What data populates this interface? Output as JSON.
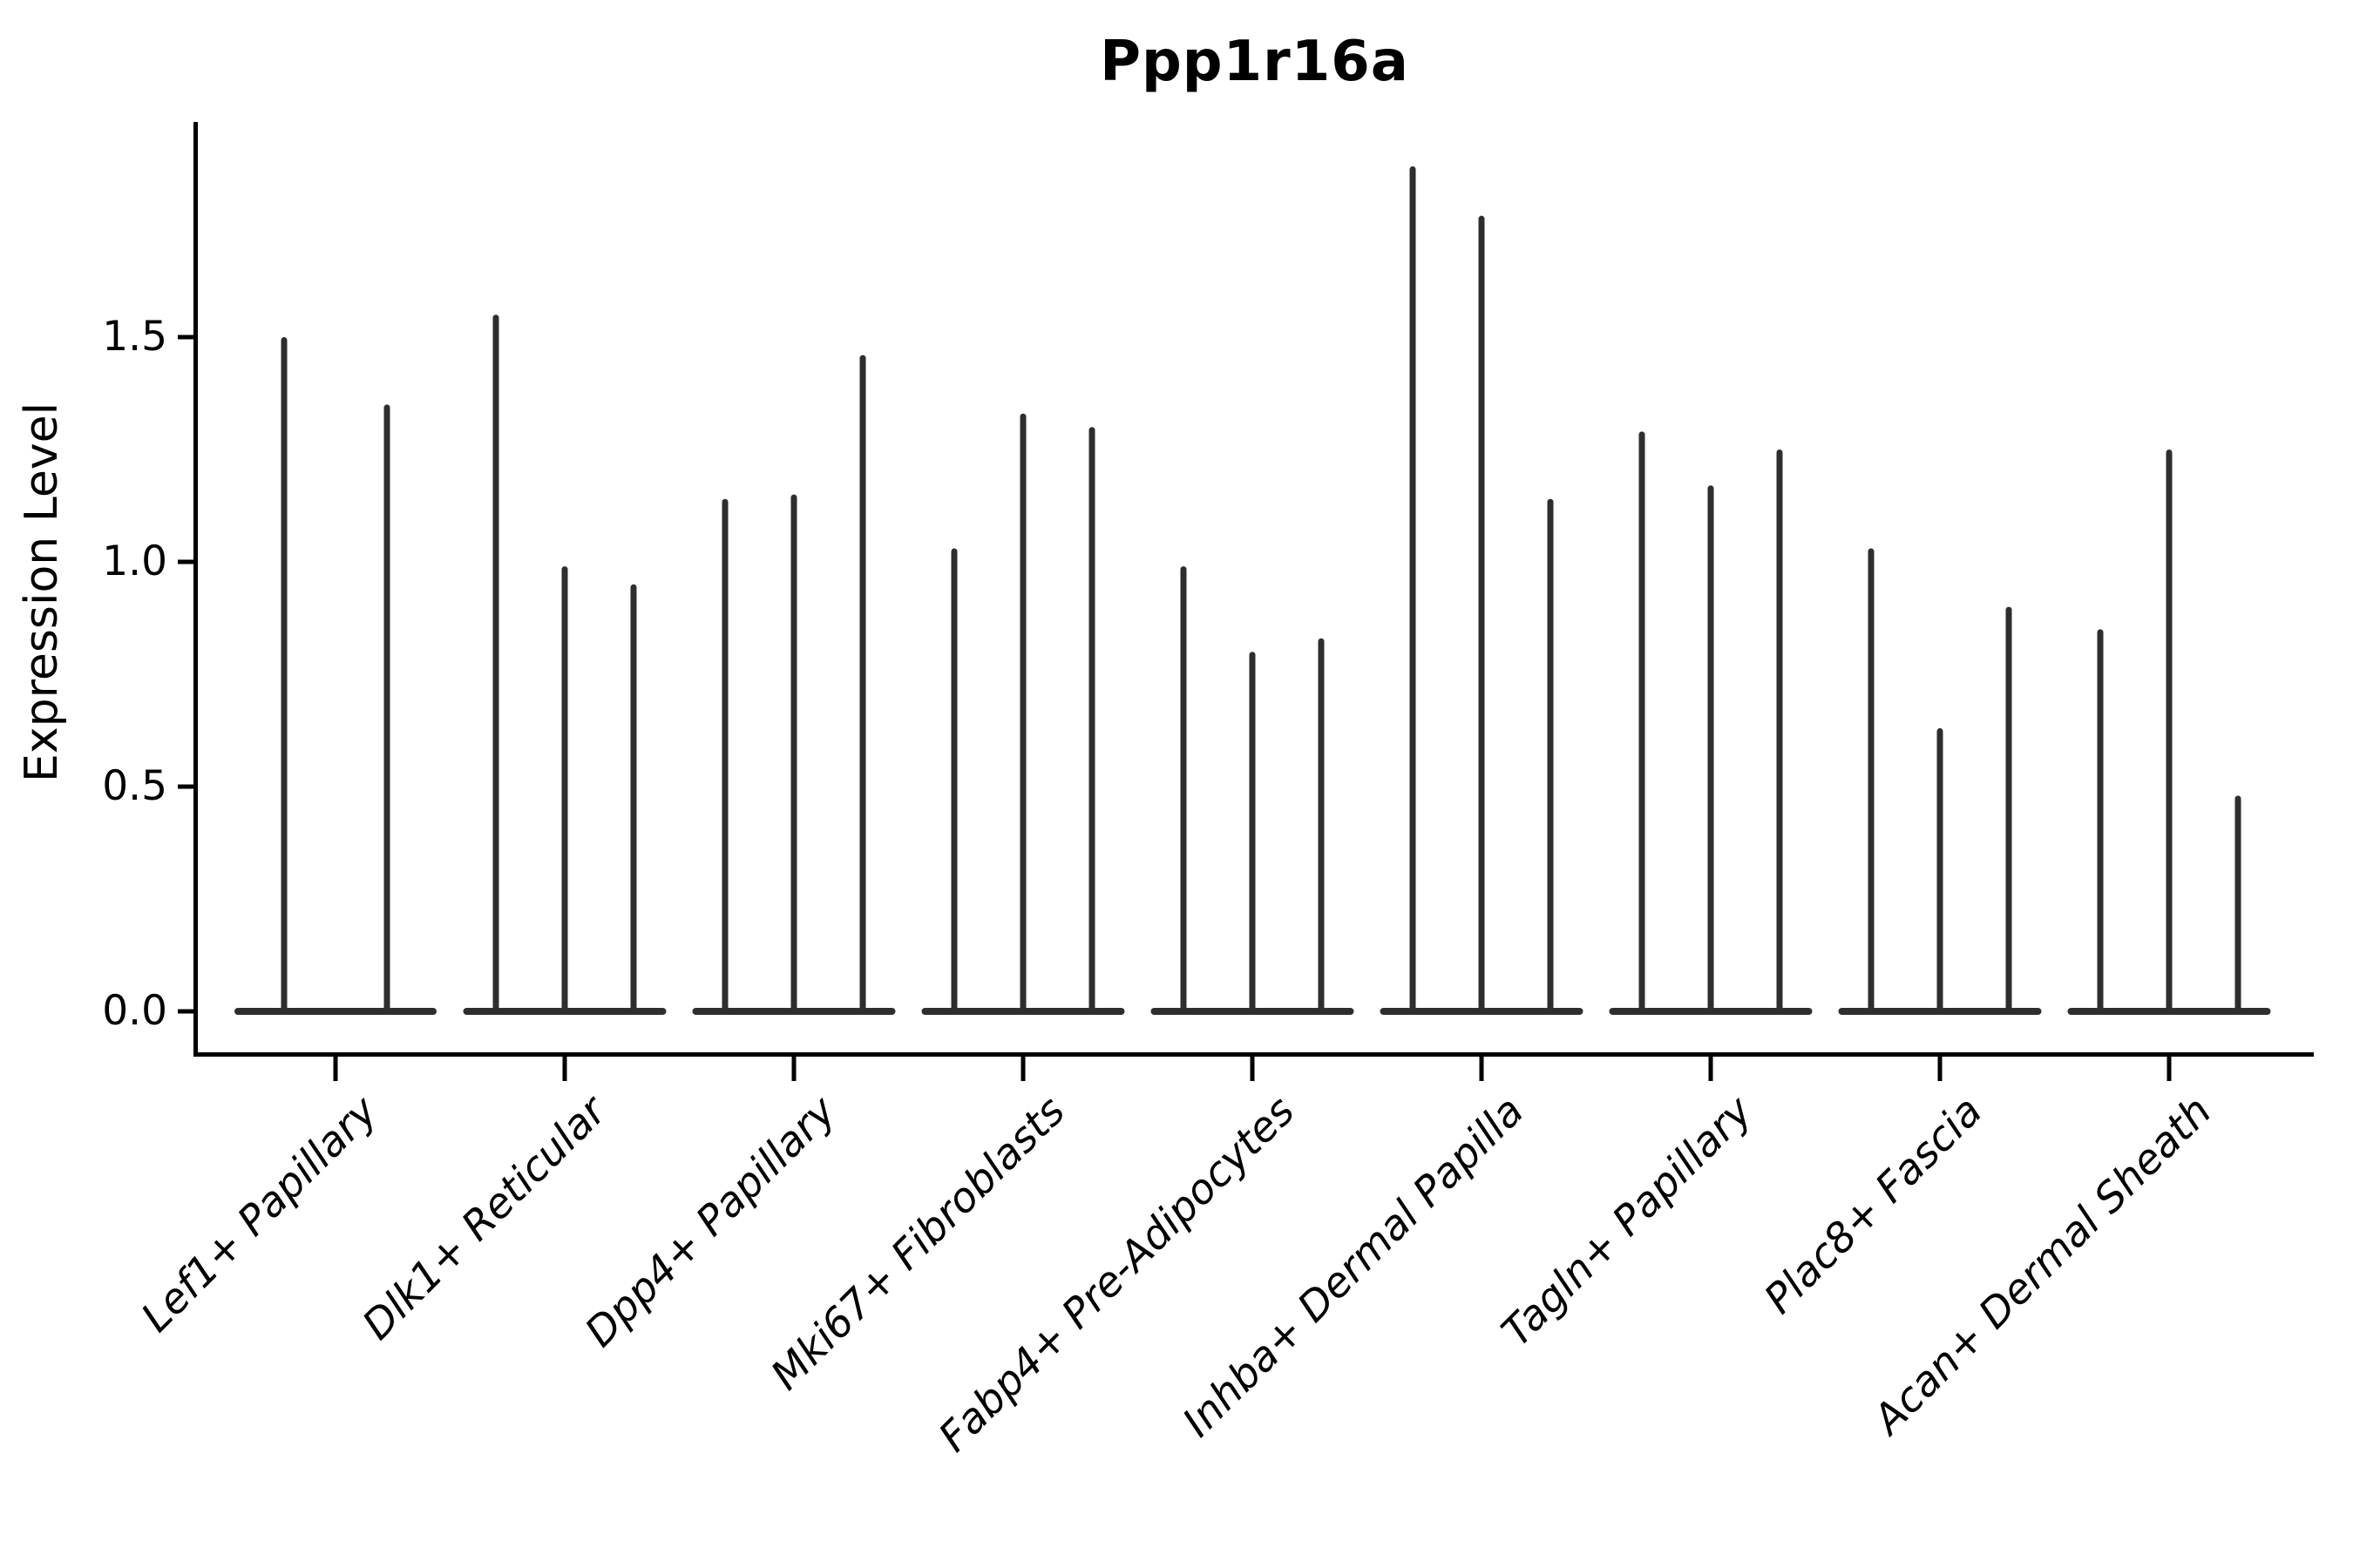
{
  "chart_data": {
    "type": "violin",
    "title": "Ppp1r16a",
    "ylabel": "Expression Level",
    "xlabel": "",
    "ylim": [
      0,
      1.98
    ],
    "yticks": [
      0.0,
      0.5,
      1.0,
      1.5
    ],
    "ytick_labels": [
      "0.0",
      "0.5",
      "1.0",
      "1.5"
    ],
    "grid": false,
    "legend": false,
    "baseline_value": 0.0,
    "note_shape": "each violin is a thin spike from 0 up to its max expression with a flat dense body at 0",
    "categories": [
      "Lef1+ Papillary",
      "Dlk1+ Reticular",
      "Dpp4+ Papillary",
      "Mki67+ Fibroblasts",
      "Fabp4+ Pre-Adipocytes",
      "Inhba+ Dermal Papilla",
      "Tagln+ Papillary",
      "Plac8+ Fascia",
      "Acan+ Dermal Sheath"
    ],
    "groups": [
      {
        "category": "Lef1+ Papillary",
        "violin_max_values": [
          1.5,
          1.35
        ]
      },
      {
        "category": "Dlk1+ Reticular",
        "violin_max_values": [
          1.55,
          0.99,
          0.95
        ]
      },
      {
        "category": "Dpp4+ Papillary",
        "violin_max_values": [
          1.14,
          1.15,
          1.46
        ]
      },
      {
        "category": "Mki67+ Fibroblasts",
        "violin_max_values": [
          1.03,
          1.33,
          1.3
        ]
      },
      {
        "category": "Fabp4+ Pre-Adipocytes",
        "violin_max_values": [
          0.99,
          0.8,
          0.83
        ]
      },
      {
        "category": "Inhba+ Dermal Papilla",
        "violin_max_values": [
          1.88,
          1.77,
          1.14
        ]
      },
      {
        "category": "Tagln+ Papillary",
        "violin_max_values": [
          1.29,
          1.17,
          1.25
        ]
      },
      {
        "category": "Plac8+ Fascia",
        "violin_max_values": [
          1.03,
          0.63,
          0.9
        ]
      },
      {
        "category": "Acan+ Dermal Sheath",
        "violin_max_values": [
          0.85,
          1.25,
          0.48
        ]
      }
    ],
    "colors": {
      "violin_ink": "#2e2e2e",
      "axis_ink": "#000000",
      "text_ink": "#000000",
      "background": "#ffffff"
    }
  }
}
